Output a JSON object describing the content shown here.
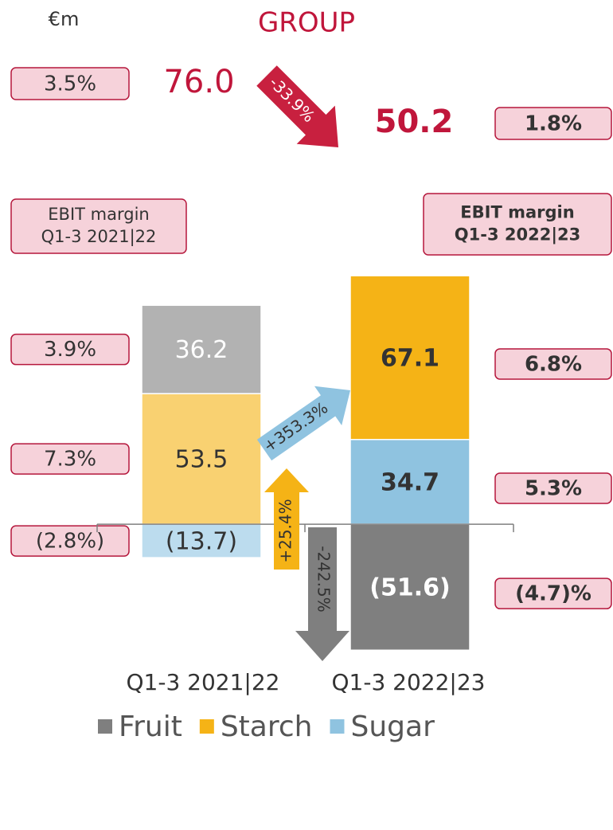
{
  "chart_data": {
    "type": "bar",
    "title": "GROUP",
    "unit_label": "€m",
    "categories": [
      "Q1-3 2021|22",
      "Q1-3 2022|23"
    ],
    "series": [
      {
        "name": "Fruit",
        "color": "#7f7f7f",
        "colors": [
          "#b2b2b2",
          "#7f7f7f"
        ],
        "values": [
          36.2,
          -51.6
        ],
        "value_labels": [
          "36.2",
          "(51.6)"
        ],
        "margin": {
          "values": [
            3.9,
            -4.7
          ],
          "value_labels": [
            "3.9%",
            "(4.7)%"
          ]
        },
        "change": {
          "value": -242.5,
          "label": "-242.5%"
        }
      },
      {
        "name": "Starch",
        "color": "#f5b316",
        "colors": [
          "#f9d171",
          "#f5b316"
        ],
        "values": [
          53.5,
          67.1
        ],
        "value_labels": [
          "53.5",
          "67.1"
        ],
        "margin": {
          "values": [
            7.3,
            6.8
          ],
          "value_labels": [
            "7.3%",
            "6.8%"
          ]
        },
        "change": {
          "value": 25.4,
          "label": "+25.4%"
        }
      },
      {
        "name": "Sugar",
        "color": "#8fc3e0",
        "colors": [
          "#bcdcee",
          "#8fc3e0"
        ],
        "values": [
          -13.7,
          34.7
        ],
        "value_labels": [
          "(13.7)",
          "34.7"
        ],
        "margin": {
          "values": [
            -2.8,
            5.3
          ],
          "value_labels": [
            "(2.8%)",
            "5.3%"
          ]
        },
        "change": {
          "value": 353.3,
          "label": "+353.3%"
        }
      }
    ],
    "totals": {
      "values": [
        76.0,
        50.2
      ],
      "value_labels": [
        "76.0",
        "50.2"
      ]
    },
    "total_margins": {
      "values": [
        3.5,
        1.8
      ],
      "value_labels": [
        "3.5%",
        "1.8%"
      ]
    },
    "total_change": {
      "value": -33.9,
      "label": "-33.9%"
    },
    "margin_headers": [
      [
        "EBIT margin",
        "Q1-3 2021|22"
      ],
      [
        "EBIT margin",
        "Q1-3 2022|23"
      ]
    ],
    "ylim": [
      -60,
      110
    ],
    "legend": "bottom"
  }
}
